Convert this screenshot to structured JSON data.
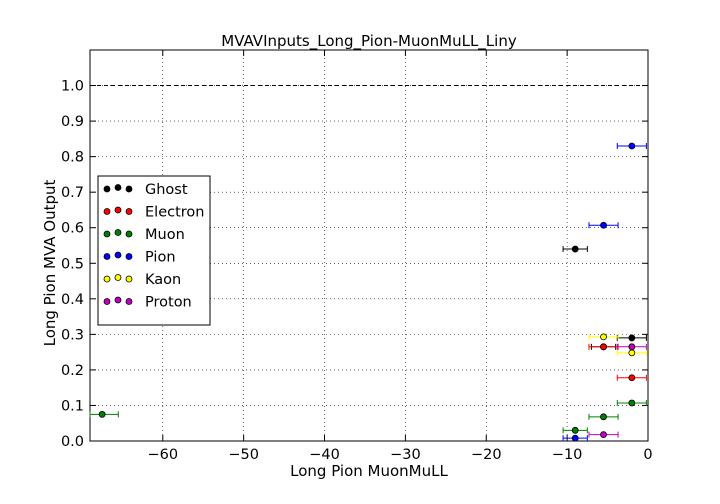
{
  "chart_data": {
    "type": "scatter",
    "title": "MVAVInputs_Long_Pion-MuonMuLL_Liny",
    "xlabel": "Long Pion MuonMuLL",
    "ylabel": "Long Pion MVA Output",
    "xlim": [
      -69,
      0
    ],
    "ylim": [
      0,
      1.1
    ],
    "xticks": [
      -60,
      -50,
      -40,
      -30,
      -20,
      -10,
      0
    ],
    "xtick_labels": [
      "−60",
      "−50",
      "−40",
      "−30",
      "−20",
      "−10",
      "0"
    ],
    "yticks": [
      0.0,
      0.1,
      0.2,
      0.3,
      0.4,
      0.5,
      0.6,
      0.7,
      0.8,
      0.9,
      1.0
    ],
    "ytick_labels": [
      "0.0",
      "0.1",
      "0.2",
      "0.3",
      "0.4",
      "0.5",
      "0.6",
      "0.7",
      "0.8",
      "0.9",
      "1.0"
    ],
    "grid": true,
    "reference_line": {
      "y": 1.0,
      "style": "dashed"
    },
    "legend_position": "center-left",
    "series": [
      {
        "name": "Ghost",
        "color": "#000000",
        "points": [
          {
            "x": -9,
            "y": 0.54,
            "xerr": 1.5
          },
          {
            "x": -5.5,
            "y": 0.265,
            "xerr": 1.5
          },
          {
            "x": -2,
            "y": 0.29,
            "xerr": 1.8
          }
        ]
      },
      {
        "name": "Electron",
        "color": "#ff0000",
        "points": [
          {
            "x": -5.5,
            "y": 0.265,
            "xerr": 1.8
          },
          {
            "x": -2,
            "y": 0.178,
            "xerr": 1.8
          }
        ]
      },
      {
        "name": "Muon",
        "color": "#007f00",
        "points": [
          {
            "x": -67.5,
            "y": 0.075,
            "xerr": 2
          },
          {
            "x": -9,
            "y": 0.03,
            "xerr": 1.5
          },
          {
            "x": -5.5,
            "y": 0.068,
            "xerr": 1.8
          },
          {
            "x": -2,
            "y": 0.107,
            "xerr": 1.8
          }
        ]
      },
      {
        "name": "Pion",
        "color": "#0000ff",
        "points": [
          {
            "x": -9,
            "y": 0.008,
            "xerr": 1.5
          },
          {
            "x": -5.5,
            "y": 0.607,
            "xerr": 1.8
          },
          {
            "x": -2,
            "y": 0.83,
            "xerr": 1.8
          }
        ]
      },
      {
        "name": "Kaon",
        "color": "#ffff00",
        "points": [
          {
            "x": -5.5,
            "y": 0.293,
            "xerr": 1.8
          },
          {
            "x": -2,
            "y": 0.248,
            "xerr": 1.8
          }
        ]
      },
      {
        "name": "Proton",
        "color": "#bf00bf",
        "points": [
          {
            "x": -5.5,
            "y": 0.018,
            "xerr": 1.8
          },
          {
            "x": -2,
            "y": 0.265,
            "xerr": 1.8
          }
        ]
      }
    ]
  }
}
